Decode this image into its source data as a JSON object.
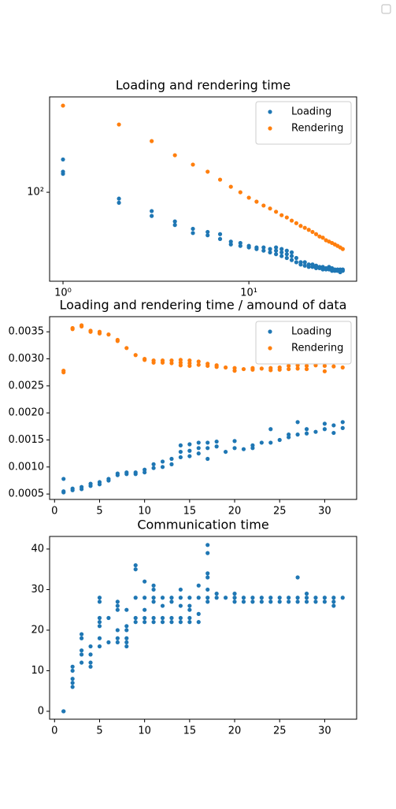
{
  "chart_data": [
    {
      "type": "scatter",
      "title": "Loading and rendering time",
      "xscale": "log",
      "yscale": "log",
      "legend": "upper right",
      "xlim": [
        0.847,
        38
      ],
      "ylim": [
        12.1,
        963
      ],
      "xticks": [
        {
          "value": 1,
          "label": "10⁰"
        },
        {
          "value": 10,
          "label": "10¹"
        }
      ],
      "yticks": [
        {
          "value": 100,
          "label": "10²"
        }
      ],
      "series": [
        {
          "name": "Loading",
          "color": "#1f77b4",
          "x": [
            1,
            1,
            1,
            2,
            2,
            3,
            3,
            4,
            4,
            5,
            5,
            6,
            6,
            7,
            7,
            8,
            8,
            9,
            9,
            10,
            10,
            11,
            11,
            12,
            12,
            13,
            13,
            14,
            14,
            14,
            15,
            15,
            15,
            16,
            16,
            16,
            17,
            17,
            17,
            18,
            18,
            19,
            19,
            20,
            20,
            21,
            21,
            22,
            22,
            23,
            23,
            24,
            24,
            25,
            25,
            26,
            26,
            27,
            27,
            28,
            28,
            29,
            29,
            30,
            30,
            31,
            31,
            32,
            32
          ],
          "values": [
            218,
            163,
            155,
            86,
            78,
            64,
            57,
            50,
            46,
            42,
            38,
            39,
            36,
            37,
            33,
            31,
            29,
            30,
            28,
            28,
            27,
            27,
            26,
            27,
            25,
            26,
            24,
            27,
            25,
            23,
            26,
            24,
            22,
            25,
            23,
            21,
            24,
            22,
            20,
            21,
            19,
            19,
            18,
            19,
            17.5,
            18,
            17,
            18,
            17,
            17.5,
            16.5,
            17,
            16.5,
            17,
            16,
            16.5,
            16,
            17,
            16,
            16.5,
            15.5,
            16,
            15.5,
            16,
            15.5,
            16,
            15,
            16,
            15.5
          ]
        },
        {
          "name": "Rendering",
          "color": "#ff7f0e",
          "x": [
            1,
            2,
            3,
            4,
            5,
            6,
            7,
            8,
            9,
            10,
            11,
            12,
            13,
            14,
            15,
            16,
            17,
            18,
            19,
            20,
            21,
            22,
            23,
            24,
            25,
            26,
            27,
            28,
            29,
            30,
            31,
            32
          ],
          "values": [
            783,
            500,
            337,
            241,
            193,
            163,
            135,
            114,
            100,
            88,
            80,
            73,
            68,
            63,
            58,
            55,
            51,
            48,
            45,
            43,
            41,
            39,
            37,
            35,
            34,
            32,
            31,
            30,
            29,
            28,
            27,
            26
          ]
        }
      ]
    },
    {
      "type": "scatter",
      "title": "Loading and rendering time / amound of data",
      "legend": "upper right",
      "xlim": [
        -0.55,
        33.55
      ],
      "ylim": [
        0.0004,
        0.00378
      ],
      "xticks": [
        0,
        5,
        10,
        15,
        20,
        25,
        30
      ],
      "yticks": [
        0.0005,
        {
          "value": 0.001,
          "label": "0.0010"
        },
        0.0015,
        {
          "value": 0.002,
          "label": "0.0020"
        },
        0.0025,
        {
          "value": 0.003,
          "label": "0.0030"
        },
        0.0035
      ],
      "series": [
        {
          "name": "Loading",
          "color": "#1f77b4",
          "x": [
            1,
            1,
            1,
            2,
            2,
            3,
            3,
            4,
            4,
            5,
            5,
            6,
            6,
            7,
            7,
            8,
            8,
            9,
            9,
            10,
            10,
            11,
            11,
            12,
            12,
            13,
            13,
            14,
            14,
            14,
            15,
            15,
            15,
            16,
            16,
            16,
            17,
            17,
            17,
            18,
            18,
            19,
            20,
            20,
            21,
            22,
            22,
            23,
            24,
            24,
            25,
            26,
            26,
            27,
            27,
            28,
            28,
            29,
            30,
            30,
            31,
            31,
            32,
            32
          ],
          "values": [
            0.00078,
            0.00055,
            0.00053,
            0.0006,
            0.00057,
            0.00063,
            0.00059,
            0.00069,
            0.00065,
            0.00072,
            0.00068,
            0.00078,
            0.00075,
            0.00088,
            0.00085,
            0.0009,
            0.00087,
            0.0009,
            0.00087,
            0.00095,
            0.0009,
            0.00105,
            0.00098,
            0.0011,
            0.001,
            0.00115,
            0.00105,
            0.0014,
            0.00128,
            0.00118,
            0.00142,
            0.0013,
            0.0012,
            0.00145,
            0.00135,
            0.00125,
            0.00145,
            0.00135,
            0.00115,
            0.00147,
            0.00138,
            0.00128,
            0.00148,
            0.00135,
            0.00133,
            0.0014,
            0.00135,
            0.00145,
            0.0017,
            0.00145,
            0.0015,
            0.0016,
            0.00155,
            0.00183,
            0.0016,
            0.0017,
            0.00162,
            0.00165,
            0.0018,
            0.0017,
            0.00177,
            0.00163,
            0.00183,
            0.00172
          ]
        },
        {
          "name": "Rendering",
          "color": "#ff7f0e",
          "x": [
            1,
            1,
            2,
            2,
            3,
            3,
            4,
            4,
            5,
            5,
            6,
            7,
            7,
            8,
            9,
            10,
            10,
            11,
            11,
            12,
            12,
            13,
            13,
            14,
            14,
            14,
            15,
            15,
            15,
            16,
            16,
            17,
            17,
            18,
            18,
            19,
            20,
            20,
            21,
            22,
            22,
            23,
            24,
            24,
            25,
            25,
            26,
            26,
            27,
            27,
            28,
            28,
            29,
            30,
            30,
            31,
            32
          ],
          "values": [
            0.00278,
            0.00275,
            0.00357,
            0.00355,
            0.00362,
            0.0036,
            0.00352,
            0.0035,
            0.0035,
            0.00347,
            0.00345,
            0.00335,
            0.00333,
            0.0032,
            0.00307,
            0.003,
            0.00298,
            0.00297,
            0.00293,
            0.00297,
            0.00293,
            0.00297,
            0.00292,
            0.00298,
            0.00293,
            0.00288,
            0.00297,
            0.00292,
            0.00287,
            0.00295,
            0.00289,
            0.00291,
            0.00287,
            0.00288,
            0.00285,
            0.00284,
            0.00283,
            0.00278,
            0.00281,
            0.00283,
            0.0028,
            0.00282,
            0.00283,
            0.00279,
            0.00284,
            0.0028,
            0.00287,
            0.00281,
            0.00288,
            0.00282,
            0.00287,
            0.00281,
            0.00288,
            0.00287,
            0.00277,
            0.00286,
            0.00284
          ]
        }
      ]
    },
    {
      "type": "scatter",
      "title": "Communication time",
      "xlim": [
        -0.55,
        33.55
      ],
      "ylim": [
        -1.95,
        43.1
      ],
      "xticks": [
        0,
        5,
        10,
        15,
        20,
        25,
        30
      ],
      "yticks": [
        0,
        10,
        20,
        30,
        40
      ],
      "series": [
        {
          "color": "#1f77b4",
          "x": [
            1,
            1,
            2,
            2,
            2,
            2,
            2,
            3,
            3,
            3,
            3,
            3,
            4,
            4,
            4,
            4,
            5,
            5,
            5,
            5,
            5,
            5,
            5,
            6,
            6,
            7,
            7,
            7,
            7,
            7,
            7,
            8,
            8,
            8,
            8,
            8,
            8,
            9,
            9,
            9,
            9,
            9,
            10,
            10,
            10,
            10,
            10,
            11,
            11,
            11,
            11,
            11,
            11,
            12,
            12,
            12,
            12,
            13,
            13,
            13,
            13,
            14,
            14,
            14,
            14,
            14,
            15,
            15,
            15,
            15,
            15,
            16,
            16,
            16,
            16,
            17,
            17,
            17,
            17,
            17,
            17,
            17,
            18,
            18,
            19,
            20,
            20,
            20,
            21,
            21,
            22,
            22,
            23,
            23,
            24,
            24,
            25,
            25,
            26,
            26,
            27,
            27,
            27,
            28,
            28,
            28,
            29,
            29,
            30,
            30,
            31,
            31,
            31,
            32
          ],
          "values": [
            0,
            0,
            11,
            10,
            8,
            7,
            6,
            19,
            18,
            15,
            14,
            12,
            16,
            14,
            12,
            11,
            28,
            27,
            23,
            22,
            21,
            18,
            16,
            23,
            17,
            27,
            26,
            25,
            20,
            18,
            17,
            25,
            21,
            20,
            18,
            17,
            16,
            36,
            35,
            28,
            23,
            22,
            32,
            28,
            25,
            23,
            22,
            31,
            30,
            28,
            27,
            23,
            22,
            28,
            26,
            23,
            22,
            28,
            27,
            23,
            22,
            30,
            28,
            26,
            23,
            22,
            28,
            26,
            25,
            23,
            22,
            31,
            28,
            24,
            22,
            41,
            39,
            34,
            33,
            30,
            28,
            27,
            29,
            28,
            28,
            29,
            28,
            27,
            28,
            27,
            28,
            27,
            28,
            27,
            28,
            27,
            28,
            27,
            28,
            27,
            33,
            28,
            27,
            29,
            28,
            27,
            28,
            27,
            28,
            27,
            28,
            27,
            26,
            28
          ]
        }
      ]
    }
  ]
}
